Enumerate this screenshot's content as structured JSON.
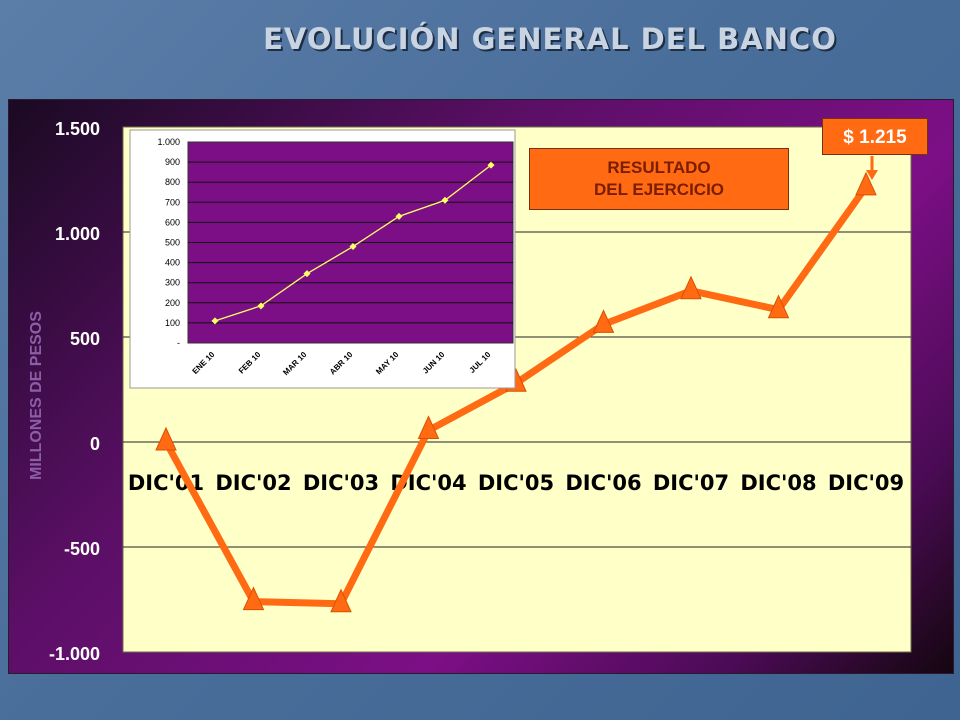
{
  "page": {
    "title": "EVOLUCIÓN GENERAL DEL BANCO"
  },
  "callouts": {
    "result_label": [
      "RESULTADO",
      "DEL EJERCICIO"
    ],
    "highlight_value": "$ 1.215"
  },
  "colors": {
    "line": "#ff6a13",
    "plot_bg": "#ffffc8",
    "inset_bg": "#7c0f86",
    "inset_line": "#ffff66"
  },
  "chart_data": [
    {
      "type": "line",
      "categories": [
        "DIC'01",
        "DIC'02",
        "DIC'03",
        "DIC'04",
        "DIC'05",
        "DIC'06",
        "DIC'07",
        "DIC'08",
        "DIC'09"
      ],
      "values": [
        0,
        -760,
        -770,
        55,
        280,
        560,
        720,
        630,
        1215
      ],
      "ylabel": "MILLONES DE PESOS",
      "ylim": [
        -1000,
        1500
      ],
      "yticks": [
        -1000,
        -500,
        0,
        500,
        1000,
        1500
      ],
      "ytick_labels": [
        "-1.000",
        "-500",
        "0",
        "500",
        "1.000",
        "1.500"
      ],
      "grid": true,
      "marker": "triangle",
      "annotations": [
        {
          "category": "DIC'09",
          "text": "$ 1.215"
        }
      ]
    },
    {
      "type": "line",
      "categories": [
        "ENE 10",
        "FEB 10",
        "MAR 10",
        "ABR 10",
        "MAY 10",
        "JUN 10",
        "JUL 10"
      ],
      "values": [
        110,
        185,
        345,
        480,
        630,
        710,
        885
      ],
      "ylim": [
        0,
        1000
      ],
      "yticks": [
        0,
        100,
        200,
        300,
        400,
        500,
        600,
        700,
        800,
        900,
        1000
      ],
      "ytick_labels": [
        "-",
        "100",
        "200",
        "300",
        "400",
        "500",
        "600",
        "700",
        "800",
        "900",
        "1.000"
      ],
      "grid": true,
      "marker": "diamond"
    }
  ]
}
